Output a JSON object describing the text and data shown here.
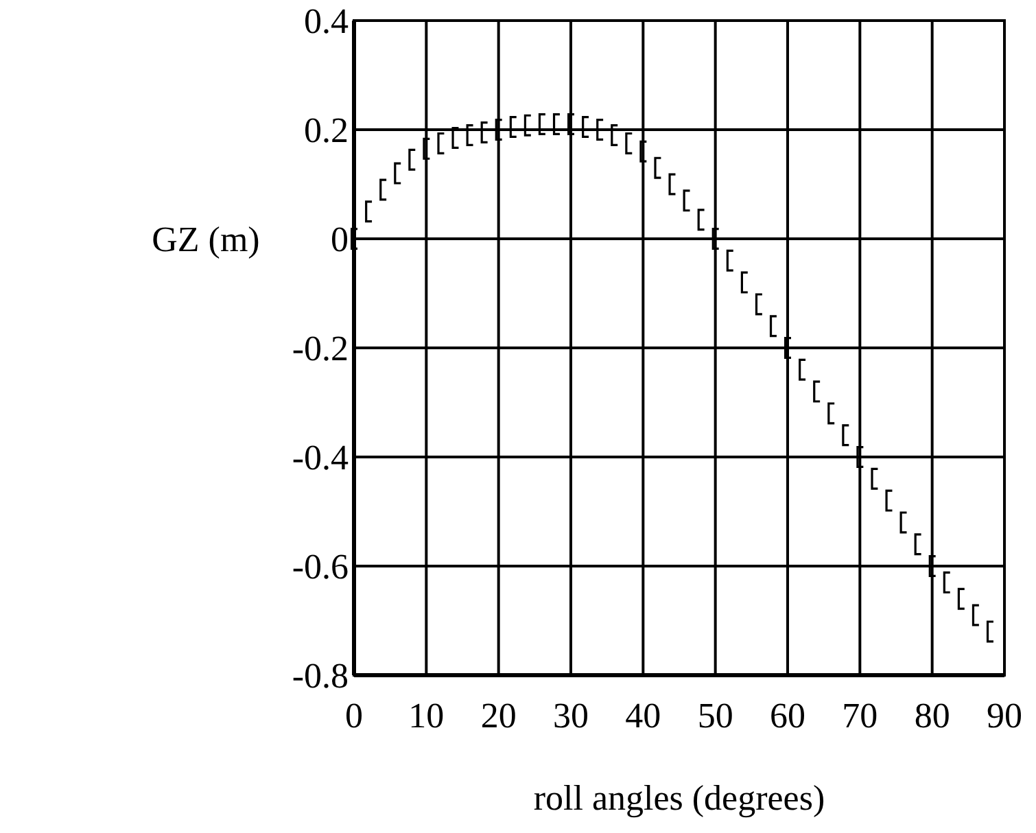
{
  "chart_data": {
    "type": "scatter",
    "xlabel": "roll angles (degrees)",
    "ylabel": "GZ (m)",
    "x": [
      0,
      2,
      4,
      6,
      8,
      10,
      12,
      14,
      16,
      18,
      20,
      22,
      24,
      26,
      28,
      30,
      32,
      34,
      36,
      38,
      40,
      42,
      44,
      46,
      48,
      50,
      52,
      54,
      56,
      58,
      60,
      62,
      64,
      66,
      68,
      70,
      72,
      74,
      76,
      78,
      80,
      82,
      84,
      86,
      88
    ],
    "series": [
      {
        "color": "#000000",
        "values": [
          0,
          0.05,
          0.09,
          0.12,
          0.145,
          0.165,
          0.175,
          0.185,
          0.19,
          0.195,
          0.2,
          0.205,
          0.208,
          0.21,
          0.21,
          0.21,
          0.205,
          0.2,
          0.19,
          0.175,
          0.16,
          0.13,
          0.1,
          0.07,
          0.035,
          0,
          -0.04,
          -0.08,
          -0.12,
          -0.16,
          -0.2,
          -0.24,
          -0.28,
          -0.32,
          -0.36,
          -0.4,
          -0.44,
          -0.48,
          -0.52,
          -0.56,
          -0.6,
          -0.63,
          -0.66,
          -0.69,
          -0.72
        ]
      }
    ],
    "xlim": [
      0,
      90
    ],
    "ylim": [
      -0.8,
      0.4
    ],
    "xticks": [
      0,
      10,
      20,
      30,
      40,
      50,
      60,
      70,
      80,
      90
    ],
    "yticks": [
      -0.8,
      -0.6,
      -0.4,
      -0.2,
      0,
      0.2,
      0.4
    ],
    "grid": true
  }
}
